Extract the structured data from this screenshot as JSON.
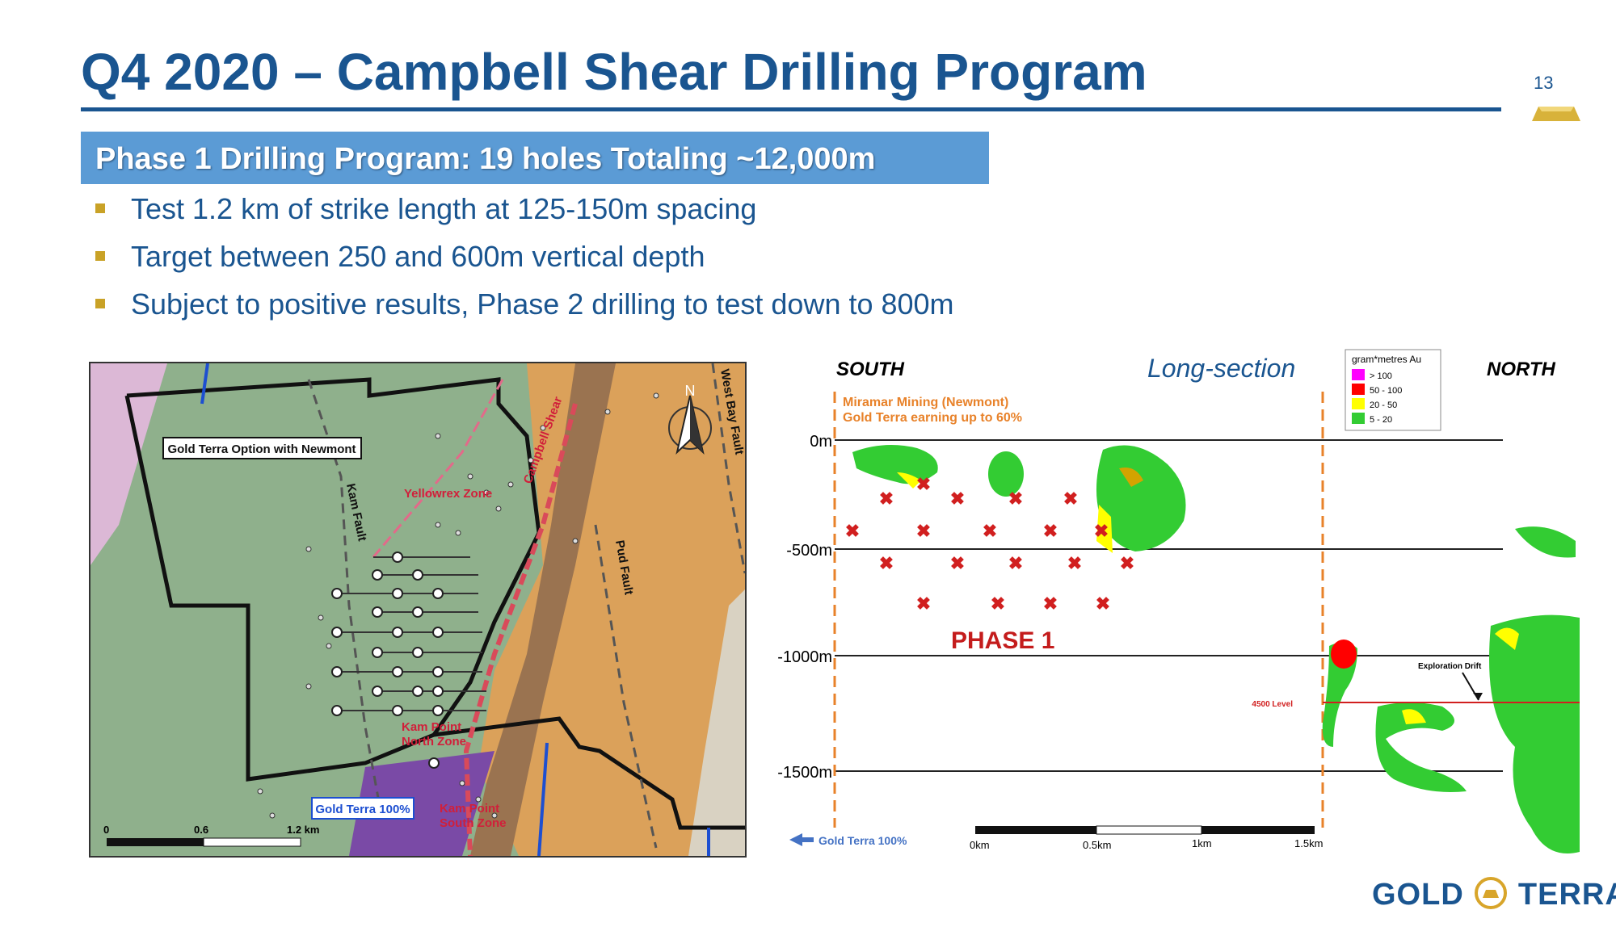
{
  "page": {
    "title": "Q4 2020 – Campbell Shear Drilling Program",
    "page_number": "13",
    "header": "Phase 1 Drilling Program: 19 holes Totaling ~12,000m",
    "bullets": [
      "Test 1.2 km of strike length at 125-150m spacing",
      "Target between 250 and 600m vertical depth",
      "Subject to positive results, Phase 2 drilling to test down to 800m"
    ],
    "colors": {
      "title": "#1a5590",
      "header_bg": "#5b9bd5",
      "bullet": "#c9a227"
    }
  },
  "map": {
    "option_label": "Gold Terra Option with Newmont",
    "owned_label": "Gold Terra 100%",
    "north_label": "N",
    "kam_fault": "Kam Fault",
    "yellowrex_zone": "Yellowrex Zone",
    "campbell_shear": "Campbell Shear",
    "west_bay_fault": "West Bay Fault",
    "pud_fault": "Pud Fault",
    "kam_point_north_1": "Kam Point",
    "kam_point_north_2": "North Zone",
    "kam_point_south_1": "Kam Point",
    "kam_point_south_2": "South Zone",
    "scale_labels": [
      "0",
      "0.6",
      "1.2 km"
    ]
  },
  "section": {
    "south": "SOUTH",
    "north": "NORTH",
    "title": "Long-section",
    "miramar_1": "Miramar Mining (Newmont)",
    "miramar_2": "Gold Terra earning up to 60%",
    "depths": [
      "0m",
      "-500m",
      "-1000m",
      "-1500m"
    ],
    "phase": "PHASE 1",
    "legend_title": "gram*metres Au",
    "legend": [
      {
        "label": "> 100",
        "color": "#ff00ff"
      },
      {
        "label": "50 - 100",
        "color": "#ff0000"
      },
      {
        "label": "20 - 50",
        "color": "#ffff00"
      },
      {
        "label": "5 - 20",
        "color": "#33cc33"
      }
    ],
    "exploration_drift": "Exploration Drift",
    "level_4500": "4500 Level",
    "gold_terra_100": "Gold Terra 100%",
    "scale_labels": [
      "0km",
      "0.5km",
      "1km",
      "1.5km"
    ]
  },
  "logo": {
    "left": "GOLD",
    "right": "TERRA"
  }
}
